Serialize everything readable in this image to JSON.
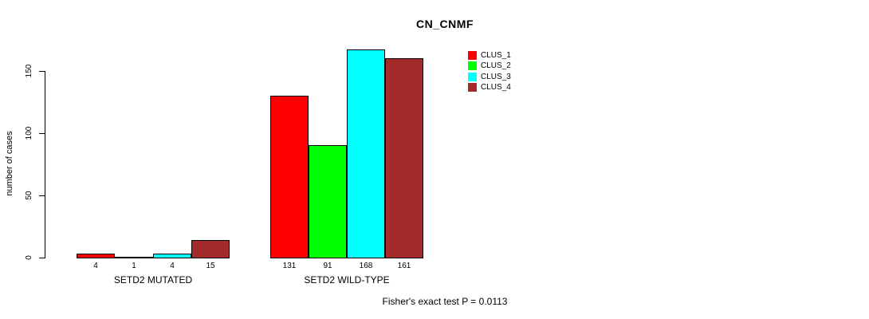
{
  "chart_data": {
    "type": "bar",
    "title": "CN_CNMF",
    "xlabel": "",
    "ylabel": "number of cases",
    "categories": [
      "SETD2 MUTATED",
      "SETD2 WILD-TYPE"
    ],
    "series": [
      {
        "name": "CLUS_1",
        "color": "#ff0000",
        "values": [
          4,
          131
        ]
      },
      {
        "name": "CLUS_2",
        "color": "#00ff00",
        "values": [
          1,
          91
        ]
      },
      {
        "name": "CLUS_3",
        "color": "#00ffff",
        "values": [
          4,
          168
        ]
      },
      {
        "name": "CLUS_4",
        "color": "#a52a2a",
        "values": [
          15,
          161
        ]
      }
    ],
    "yticks": [
      0,
      50,
      100,
      150
    ],
    "ylim": [
      0,
      150
    ],
    "grid": false,
    "legend_position": "top-right",
    "bar_outline_color": "#000000",
    "value_labels_shown": true
  },
  "annotation": {
    "fisher_test": "Fisher's exact test P = 0.0113"
  }
}
